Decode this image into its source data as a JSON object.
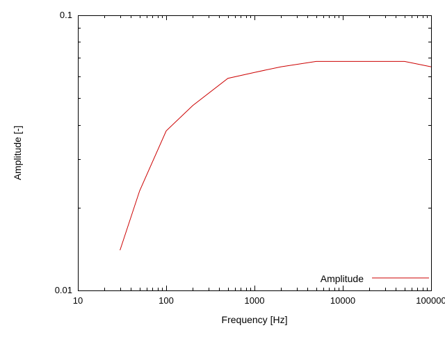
{
  "chart_data": {
    "type": "line",
    "title": "",
    "xlabel": "Frequency [Hz]",
    "ylabel": "Amplitude [-]",
    "x_scale": "log",
    "y_scale": "log",
    "xlim": [
      10,
      100000
    ],
    "ylim": [
      0.01,
      0.1
    ],
    "grid": false,
    "legend_position": "bottom-right-inside",
    "x_ticks": [
      {
        "value": 10,
        "label": "10"
      },
      {
        "value": 100,
        "label": "100"
      },
      {
        "value": 1000,
        "label": "1000"
      },
      {
        "value": 10000,
        "label": "10000"
      },
      {
        "value": 100000,
        "label": "100000"
      }
    ],
    "y_ticks": [
      {
        "value": 0.01,
        "label": "0.01"
      },
      {
        "value": 0.1,
        "label": "0.1"
      }
    ],
    "series": [
      {
        "name": "Amplitude",
        "color": "#cc0000",
        "x": [
          30,
          50,
          100,
          200,
          500,
          1000,
          2000,
          5000,
          10000,
          20000,
          50000,
          100000
        ],
        "y": [
          0.014,
          0.023,
          0.038,
          0.047,
          0.059,
          0.062,
          0.065,
          0.068,
          0.068,
          0.068,
          0.068,
          0.065
        ]
      }
    ]
  }
}
